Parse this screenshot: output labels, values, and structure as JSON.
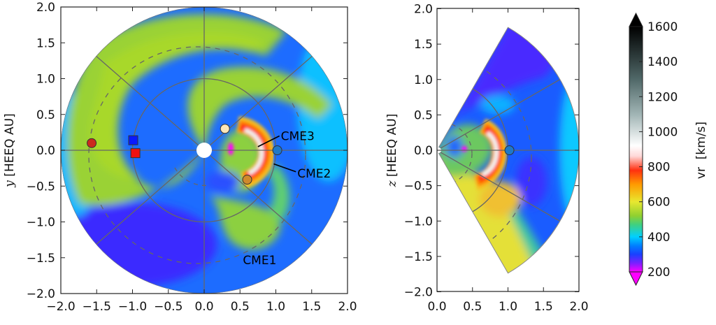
{
  "chart_data": [
    {
      "type": "heatmap",
      "panel": "equatorial",
      "ylabel_var": "y",
      "ylabel_unit": "[HEEQ AU]",
      "xlim": [
        -2.0,
        2.0
      ],
      "ylim": [
        -2.0,
        2.0
      ],
      "xticks": [
        "−2.0",
        "−1.5",
        "−1.0",
        "−0.5",
        "0.0",
        "0.5",
        "1.0",
        "1.5",
        "2.0"
      ],
      "yticks": [
        "−2.0",
        "−1.5",
        "−1.0",
        "−0.5",
        "0.0",
        "0.5",
        "1.0",
        "1.5",
        "2.0"
      ],
      "tick_values": [
        -2.0,
        -1.5,
        -1.0,
        -0.5,
        0.0,
        0.5,
        1.0,
        1.5,
        2.0
      ],
      "annotations": [
        {
          "text": "CME3",
          "x": 0.75,
          "y": 0.05,
          "label_x": 1.07,
          "label_y": 0.2,
          "arrow": true
        },
        {
          "text": "CME2",
          "x": 0.97,
          "y": -0.19,
          "label_x": 1.3,
          "label_y": -0.32,
          "arrow": true
        },
        {
          "text": "CME1",
          "x": 0.0,
          "y": 0.0,
          "label_x": 0.93,
          "label_y": -1.53,
          "arrow": false
        }
      ],
      "markers": [
        {
          "shape": "circle",
          "color": "#cc2a1e",
          "x": -1.57,
          "y": 0.1
        },
        {
          "shape": "square",
          "color": "#0a1aff",
          "x": -0.99,
          "y": 0.14
        },
        {
          "shape": "square",
          "color": "#ee1111",
          "x": -0.96,
          "y": -0.04
        },
        {
          "shape": "circle",
          "color": "#fbe6b8",
          "x": 0.29,
          "y": 0.3
        },
        {
          "shape": "circle",
          "color": "#1f78c8",
          "x": 1.02,
          "y": 0.0
        },
        {
          "shape": "circle",
          "color": "#d0892c",
          "x": 0.6,
          "y": -0.41
        }
      ]
    },
    {
      "type": "heatmap",
      "panel": "meridional",
      "ylabel_var": "z",
      "ylabel_unit": "[HEEQ AU]",
      "xlim": [
        0.0,
        2.0
      ],
      "ylim": [
        -2.0,
        2.0
      ],
      "xticks": [
        "0.0",
        "0.5",
        "1.0",
        "1.5",
        "2.0"
      ],
      "xtick_values": [
        0.0,
        0.5,
        1.0,
        1.5,
        2.0
      ],
      "yticks": [
        "−2.0",
        "−1.5",
        "−1.0",
        "−0.5",
        "0.0",
        "0.5",
        "1.0",
        "1.5",
        "2.0"
      ],
      "ytick_values": [
        -2.0,
        -1.5,
        -1.0,
        -0.5,
        0.0,
        0.5,
        1.0,
        1.5,
        2.0
      ],
      "markers": [
        {
          "shape": "circle",
          "color": "#1f78c8",
          "x": 1.02,
          "y": 0.0
        }
      ]
    }
  ],
  "colorbar": {
    "label": "vr  [km/s]",
    "range": [
      200,
      1600
    ],
    "extend": "both",
    "ticks": [
      "200",
      "400",
      "600",
      "800",
      "1000",
      "1200",
      "1400",
      "1600"
    ],
    "tick_values": [
      200,
      400,
      600,
      800,
      1000,
      1200,
      1400,
      1600
    ],
    "colors": {
      "200": "#ff00ff",
      "250": "#7a20ff",
      "300": "#1a40ff",
      "350": "#0080ff",
      "400": "#00d0ff",
      "470": "#40d080",
      "520": "#90d030",
      "600": "#e8e830",
      "700": "#ff9a00",
      "780": "#ff3010",
      "860": "#ffd8d8",
      "920": "#ffffff",
      "1100": "#a0b4b4",
      "1300": "#506868",
      "1600": "#000000"
    }
  }
}
